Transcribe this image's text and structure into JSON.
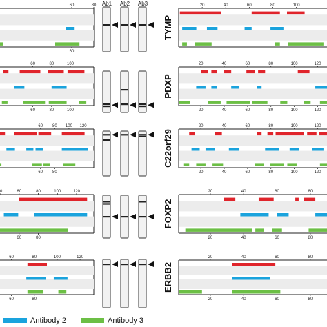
{
  "colors": {
    "antibody1": "#e0242b",
    "antibody2": "#1aa3dd",
    "antibody3": "#6cbf45"
  },
  "antibody_headers": [
    "Ab1",
    "Ab2",
    "Ab3"
  ],
  "legend": [
    {
      "label": "Antibody 2",
      "color": "#1aa3dd"
    },
    {
      "label": "Antibody 3",
      "color": "#6cbf45"
    }
  ],
  "left_panels": [
    {
      "x_range": [
        -5,
        80
      ],
      "top_ticks": [
        "60",
        "80"
      ],
      "bottom_ticks": [
        "60"
      ],
      "tracks": [
        {
          "antibody": 1,
          "segments": []
        },
        {
          "antibody": 2,
          "segments": [
            [
              55,
              62
            ]
          ]
        },
        {
          "antibody": 3,
          "segments": [
            [
              -5,
              -2
            ],
            [
              45,
              67
            ]
          ]
        }
      ]
    },
    {
      "x_range": [
        25,
        125
      ],
      "top_ticks": [
        "60",
        "80",
        "100"
      ],
      "bottom_ticks": [
        "60",
        "80",
        "100"
      ],
      "tracks": [
        {
          "antibody": 1,
          "segments": [
            [
              28,
              34
            ],
            [
              46,
              68
            ],
            [
              76,
              93
            ],
            [
              97,
              115
            ]
          ]
        },
        {
          "antibody": 2,
          "segments": [
            [
              40,
              51
            ],
            [
              80,
              96
            ]
          ]
        },
        {
          "antibody": 3,
          "segments": [
            [
              27,
              33
            ],
            [
              50,
              73
            ],
            [
              77,
              96
            ],
            [
              109,
              117
            ]
          ]
        }
      ]
    },
    {
      "x_range": [
        3,
        135
      ],
      "top_ticks": [
        "60",
        "80",
        "100",
        "120"
      ],
      "bottom_ticks": [
        "60",
        "80"
      ],
      "tracks": [
        {
          "antibody": 1,
          "segments": [
            [
              3,
              10
            ],
            [
              23,
              55
            ],
            [
              57,
              75
            ],
            [
              90,
              122
            ]
          ]
        },
        {
          "antibody": 2,
          "segments": [
            [
              12,
              24
            ],
            [
              40,
              50
            ],
            [
              53,
              64
            ],
            [
              90,
              127
            ]
          ]
        },
        {
          "antibody": 3,
          "segments": [
            [
              0,
              5
            ],
            [
              48,
              62
            ],
            [
              64,
              73
            ],
            [
              92,
              109
            ]
          ]
        }
      ]
    },
    {
      "x_range": [
        40,
        138
      ],
      "top_ticks": [
        "40",
        "60",
        "80",
        "100",
        "120"
      ],
      "bottom_ticks": [
        "60",
        "80"
      ],
      "tracks": [
        {
          "antibody": 1,
          "segments": [
            [
              60,
              131
            ]
          ]
        },
        {
          "antibody": 2,
          "segments": [
            [
              44,
              59
            ],
            [
              76,
              131
            ]
          ]
        },
        {
          "antibody": 3,
          "segments": [
            [
              40,
              111
            ]
          ]
        }
      ]
    },
    {
      "x_range": [
        50,
        132
      ],
      "top_ticks": [
        "60",
        "80",
        "100",
        "120"
      ],
      "bottom_ticks": [
        "60",
        "80"
      ],
      "tracks": [
        {
          "antibody": 1,
          "segments": [
            [
              74,
              91
            ]
          ]
        },
        {
          "antibody": 2,
          "segments": [
            [
              73,
              90
            ],
            [
              97,
              109
            ]
          ]
        },
        {
          "antibody": 3,
          "segments": [
            [
              74,
              88
            ],
            [
              101,
              108
            ]
          ]
        }
      ]
    }
  ],
  "right_panels": [
    {
      "gene": "TYMP",
      "x_range": [
        0,
        126
      ],
      "top_ticks": [
        "20",
        "40",
        "60",
        "80",
        "100"
      ],
      "bottom_ticks": [],
      "tracks": [
        {
          "antibody": 1,
          "segments": [
            [
              1,
              36
            ],
            [
              62,
              86
            ],
            [
              92,
              107
            ]
          ]
        },
        {
          "antibody": 2,
          "segments": [
            [
              3,
              15
            ],
            [
              24,
              33
            ],
            [
              56,
              62
            ],
            [
              78,
              89
            ]
          ]
        },
        {
          "antibody": 3,
          "segments": [
            [
              3,
              7
            ],
            [
              14,
              28
            ],
            [
              82,
              86
            ],
            [
              93,
              123
            ]
          ]
        }
      ]
    },
    {
      "gene": "PDXP",
      "x_range": [
        1,
        128
      ],
      "top_ticks": [
        "20",
        "40",
        "60",
        "80",
        "100",
        "120"
      ],
      "bottom_ticks": [
        "20",
        "40",
        "60",
        "80",
        "100",
        "120"
      ],
      "tracks": [
        {
          "antibody": 1,
          "segments": [
            [
              20,
              26
            ],
            [
              29,
              34
            ],
            [
              40,
              46
            ],
            [
              59,
              66
            ],
            [
              69,
              75
            ],
            [
              103,
              113
            ]
          ]
        },
        {
          "antibody": 2,
          "segments": [
            [
              16,
              24
            ],
            [
              29,
              34
            ],
            [
              46,
              53
            ],
            [
              68,
              72
            ],
            [
              118,
              128
            ]
          ]
        },
        {
          "antibody": 3,
          "segments": [
            [
              1,
              11
            ],
            [
              26,
              37
            ],
            [
              42,
              62
            ],
            [
              64,
              77
            ],
            [
              88,
              94
            ],
            [
              108,
              114
            ],
            [
              122,
              128
            ]
          ]
        }
      ]
    },
    {
      "gene": "C22orf29",
      "x_range": [
        1,
        128
      ],
      "top_ticks": [
        "20",
        "40",
        "60",
        "80",
        "100",
        "120"
      ],
      "bottom_ticks": [
        "20",
        "40",
        "60",
        "80",
        "100",
        "120"
      ],
      "tracks": [
        {
          "antibody": 1,
          "segments": [
            [
              10,
              15
            ],
            [
              32,
              38
            ],
            [
              68,
              72
            ],
            [
              77,
              82
            ],
            [
              84,
              108
            ],
            [
              111,
              119
            ],
            [
              121,
              128
            ]
          ]
        },
        {
          "antibody": 2,
          "segments": [
            [
              12,
              19
            ],
            [
              24,
              32
            ],
            [
              44,
              53
            ],
            [
              75,
              87
            ],
            [
              96,
              104
            ],
            [
              115,
              125
            ]
          ]
        },
        {
          "antibody": 3,
          "segments": [
            [
              5,
              10
            ],
            [
              16,
              24
            ],
            [
              30,
              39
            ],
            [
              66,
              74
            ],
            [
              79,
              91
            ],
            [
              94,
              102
            ],
            [
              122,
              128
            ]
          ]
        }
      ]
    },
    {
      "gene": "FOXP2",
      "x_range": [
        1,
        90
      ],
      "top_ticks": [
        "20",
        "40",
        "60",
        "80"
      ],
      "bottom_ticks": [
        "20",
        "40",
        "60",
        "80"
      ],
      "tracks": [
        {
          "antibody": 1,
          "segments": [
            [
              28,
              35
            ],
            [
              49,
              58
            ],
            [
              71,
              73
            ],
            [
              76,
              83
            ]
          ]
        },
        {
          "antibody": 2,
          "segments": [
            [
              38,
              55
            ],
            [
              60,
              67
            ],
            [
              83,
              90
            ]
          ]
        },
        {
          "antibody": 3,
          "segments": [
            [
              5,
              45
            ],
            [
              47,
              52
            ],
            [
              57,
              63
            ],
            [
              79,
              90
            ]
          ]
        }
      ]
    },
    {
      "gene": "ERBB2",
      "x_range": [
        1,
        90
      ],
      "top_ticks": [
        "20",
        "40",
        "60",
        "80"
      ],
      "bottom_ticks": [
        "20",
        "40",
        "60",
        "80"
      ],
      "tracks": [
        {
          "antibody": 1,
          "segments": [
            [
              33,
              59
            ]
          ]
        },
        {
          "antibody": 2,
          "segments": [
            [
              33,
              56
            ]
          ]
        },
        {
          "antibody": 3,
          "segments": [
            [
              1,
              15
            ],
            [
              33,
              62
            ]
          ]
        }
      ]
    }
  ],
  "blot_rows": [
    {
      "bands": [
        [
          0.4
        ],
        [
          0.4
        ],
        [
          0.4
        ]
      ],
      "arrows": [
        0.4,
        0.4,
        0.4
      ]
    },
    {
      "bands": [
        [
          0.8,
          0.85
        ],
        [
          0.45,
          0.8
        ],
        [
          0.8,
          0.85
        ]
      ],
      "arrows": [
        0.82,
        0.82,
        0.82
      ]
    },
    {
      "bands": [
        [
          0.08,
          0.2
        ],
        [
          0.08
        ],
        [
          0.08,
          0.12
        ]
      ],
      "arrows": [
        0.08,
        0.08,
        0.08
      ]
    },
    {
      "bands": [
        [
          0.15,
          0.2,
          0.5
        ],
        [
          0.5
        ],
        [
          0.15,
          0.5
        ]
      ],
      "arrows": [
        0.5,
        0.5,
        0.5
      ]
    },
    {
      "bands": [
        [
          0.1
        ],
        [
          0.1
        ],
        [
          0.1
        ]
      ],
      "arrows": [
        0.1,
        0.1,
        0.1
      ]
    }
  ]
}
